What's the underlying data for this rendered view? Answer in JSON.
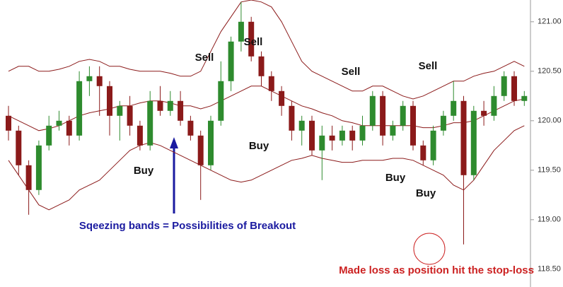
{
  "chart_data": {
    "type": "candlestick",
    "up_color": "#2e8b2e",
    "down_color": "#8b1a1a",
    "band_color": "#8b1a1a",
    "ylim": [
      118.32,
      121.22
    ],
    "yticks": [
      {
        "value": 118.5,
        "label": "118.50"
      },
      {
        "value": 119,
        "label": "119.00"
      },
      {
        "value": 119.5,
        "label": "119.50"
      },
      {
        "value": 120,
        "label": "120.00"
      },
      {
        "value": 120.5,
        "label": "120.50"
      },
      {
        "value": 121,
        "label": "121.00"
      }
    ],
    "open": [
      120.05,
      119.9,
      119.55,
      119.3,
      119.75,
      119.95,
      120.0,
      119.85,
      120.4,
      120.45,
      120.35,
      120.05,
      120.15,
      119.95,
      119.75,
      120.2,
      120.1,
      120.2,
      120.0,
      119.85,
      119.55,
      120.0,
      120.4,
      120.8,
      121.0,
      120.65,
      120.45,
      120.3,
      120.15,
      119.9,
      120.0,
      119.7,
      119.85,
      119.8,
      119.9,
      119.8,
      119.95,
      120.25,
      119.85,
      119.95,
      120.15,
      119.75,
      119.6,
      119.9,
      120.05,
      120.2,
      119.45,
      120.1,
      120.05,
      120.25,
      120.45,
      120.2
    ],
    "close": [
      119.9,
      119.55,
      119.3,
      119.75,
      119.95,
      120.0,
      119.85,
      120.4,
      120.45,
      120.35,
      120.05,
      120.15,
      119.95,
      119.75,
      120.2,
      120.1,
      120.2,
      120.0,
      119.85,
      119.55,
      120.0,
      120.4,
      120.8,
      121.0,
      120.65,
      120.45,
      120.3,
      120.15,
      119.9,
      120.0,
      119.7,
      119.85,
      119.8,
      119.9,
      119.8,
      119.95,
      120.25,
      119.85,
      119.95,
      120.15,
      119.75,
      119.6,
      119.9,
      120.05,
      120.2,
      119.45,
      120.1,
      120.05,
      120.25,
      120.45,
      120.2,
      120.25
    ],
    "high": [
      120.15,
      119.95,
      119.6,
      119.8,
      120.05,
      120.1,
      120.05,
      120.5,
      120.55,
      120.55,
      120.4,
      120.2,
      120.25,
      120.0,
      120.3,
      120.35,
      120.3,
      120.3,
      120.05,
      119.9,
      120.05,
      120.6,
      120.85,
      121.2,
      121.05,
      120.7,
      120.5,
      120.35,
      120.2,
      120.05,
      120.05,
      119.95,
      119.95,
      119.95,
      119.95,
      120.05,
      120.3,
      120.3,
      120.0,
      120.2,
      120.2,
      119.8,
      119.95,
      120.1,
      120.4,
      120.25,
      120.15,
      120.2,
      120.35,
      120.5,
      120.5,
      120.3
    ],
    "low": [
      119.8,
      119.45,
      119.05,
      119.25,
      119.7,
      119.9,
      119.75,
      119.8,
      120.25,
      120.05,
      119.85,
      119.8,
      119.85,
      119.7,
      119.7,
      120.05,
      120.05,
      119.95,
      119.8,
      119.2,
      119.5,
      119.95,
      120.3,
      120.7,
      120.6,
      120.35,
      120.2,
      120.05,
      119.8,
      119.75,
      119.65,
      119.4,
      119.7,
      119.75,
      119.7,
      119.75,
      119.9,
      119.75,
      119.8,
      119.9,
      119.7,
      119.55,
      119.55,
      119.85,
      120.0,
      118.75,
      119.4,
      119.95,
      120.0,
      120.2,
      120.15,
      120.15
    ],
    "bands": [
      {
        "values": [
          120.5,
          120.55,
          120.55,
          120.5,
          120.5,
          120.52,
          120.55,
          120.6,
          120.62,
          120.6,
          120.55,
          120.55,
          120.52,
          120.5,
          120.5,
          120.5,
          120.48,
          120.45,
          120.45,
          120.5,
          120.7,
          120.9,
          121.05,
          121.2,
          121.22,
          121.2,
          121.15,
          121.0,
          120.8,
          120.6,
          120.5,
          120.45,
          120.4,
          120.35,
          120.3,
          120.3,
          120.35,
          120.35,
          120.3,
          120.25,
          120.22,
          120.25,
          120.3,
          120.35,
          120.4,
          120.4,
          120.45,
          120.48,
          120.5,
          120.55,
          120.6,
          120.55
        ]
      },
      {
        "values": [
          120.05,
          120.0,
          119.95,
          119.9,
          119.92,
          119.95,
          120.0,
          120.05,
          120.08,
          120.1,
          120.12,
          120.15,
          120.15,
          120.18,
          120.2,
          120.2,
          120.18,
          120.15,
          120.15,
          120.12,
          120.15,
          120.2,
          120.25,
          120.3,
          120.35,
          120.35,
          120.3,
          120.25,
          120.2,
          120.15,
          120.12,
          120.08,
          120.05,
          120.0,
          119.98,
          119.95,
          119.95,
          119.95,
          119.95,
          119.95,
          119.95,
          119.93,
          119.93,
          119.95,
          119.98,
          119.98,
          120.0,
          120.05,
          120.1,
          120.15,
          120.2,
          120.22
        ]
      },
      {
        "values": [
          119.6,
          119.45,
          119.3,
          119.15,
          119.1,
          119.15,
          119.2,
          119.3,
          119.35,
          119.4,
          119.5,
          119.6,
          119.7,
          119.75,
          119.78,
          119.75,
          119.7,
          119.65,
          119.6,
          119.55,
          119.5,
          119.45,
          119.4,
          119.38,
          119.4,
          119.45,
          119.5,
          119.55,
          119.6,
          119.62,
          119.65,
          119.62,
          119.6,
          119.58,
          119.58,
          119.6,
          119.6,
          119.6,
          119.62,
          119.62,
          119.6,
          119.55,
          119.5,
          119.45,
          119.35,
          119.3,
          119.4,
          119.55,
          119.7,
          119.8,
          119.9,
          119.95
        ]
      }
    ],
    "annotations": [
      {
        "text": "Sell",
        "color": "#111111"
      },
      {
        "text": "Sell",
        "color": "#111111"
      },
      {
        "text": "Buy",
        "color": "#111111"
      },
      {
        "text": "Buy",
        "color": "#111111"
      },
      {
        "text": "Sell",
        "color": "#111111"
      },
      {
        "text": "Sell",
        "color": "#111111"
      },
      {
        "text": "Buy",
        "color": "#111111"
      },
      {
        "text": "Buy",
        "color": "#111111"
      },
      {
        "text": "Sqeezing bands = Possibilities of Breakout",
        "color": "#1a1aa0"
      },
      {
        "text": "Made loss as position hit the stop-loss",
        "color": "#cc2222"
      }
    ]
  }
}
